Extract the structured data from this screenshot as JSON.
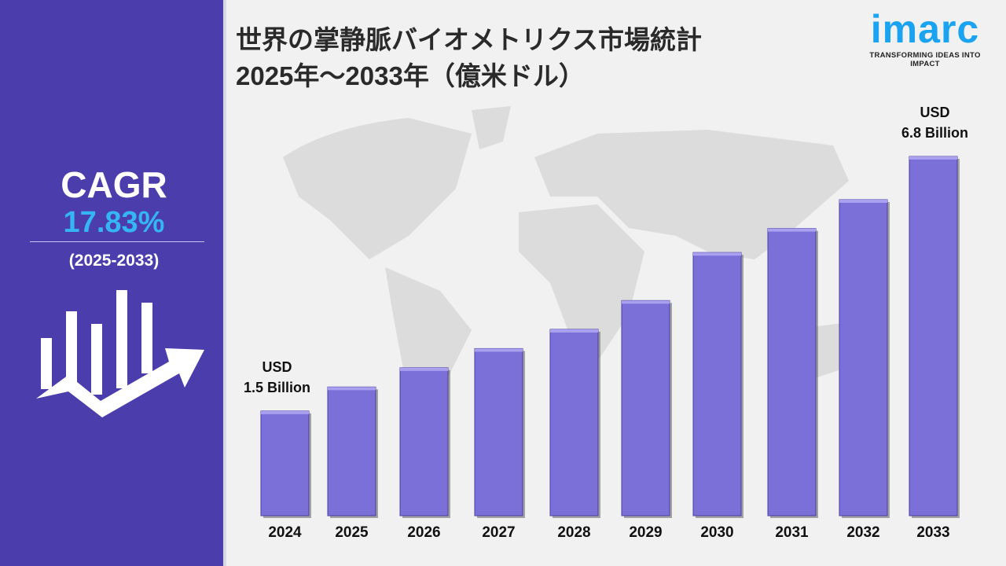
{
  "title_line1": "世界の掌静脈バイオメトリクス市場統計",
  "title_line2": " 2025年～2033年（億米ドル）",
  "logo": {
    "name": "imarc",
    "tagline": "TRANSFORMING IDEAS INTO IMPACT",
    "color": "#1aa3f0"
  },
  "cagr": {
    "label": "CAGR",
    "value": "17.83%",
    "period": "(2025-2033)",
    "value_color": "#35b6f2"
  },
  "chart_data": {
    "type": "bar",
    "categories": [
      "2024",
      "2025",
      "2026",
      "2027",
      "2028",
      "2029",
      "2030",
      "2031",
      "2032",
      "2033"
    ],
    "values": [
      1.5,
      2.0,
      2.4,
      2.8,
      3.2,
      3.8,
      4.8,
      5.3,
      5.9,
      6.8
    ],
    "bar_color": "#7b6fd8",
    "annotations": [
      {
        "category": "2024",
        "line1": "USD",
        "line2": "1.5 Billion"
      },
      {
        "category": "2033",
        "line1": "USD",
        "line2": "6.8 Billion"
      }
    ]
  }
}
